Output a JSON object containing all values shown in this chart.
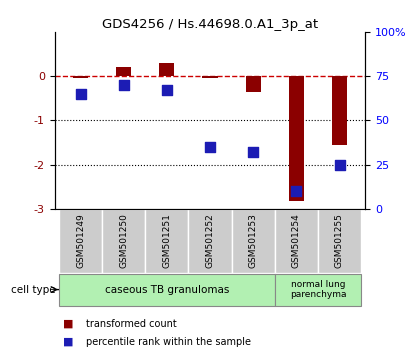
{
  "title": "GDS4256 / Hs.44698.0.A1_3p_at",
  "samples": [
    "GSM501249",
    "GSM501250",
    "GSM501251",
    "GSM501252",
    "GSM501253",
    "GSM501254",
    "GSM501255"
  ],
  "red_values": [
    -0.05,
    0.2,
    0.3,
    -0.05,
    -0.35,
    -2.82,
    -1.55
  ],
  "blue_values": [
    65,
    70,
    67,
    35,
    32,
    10,
    25
  ],
  "ylim_left": [
    -3,
    1
  ],
  "ylim_right": [
    0,
    100
  ],
  "yticks_left": [
    0,
    -1,
    -2,
    -3
  ],
  "yticks_right": [
    0,
    25,
    50,
    75,
    100
  ],
  "ytick_labels_right": [
    "0",
    "25",
    "50",
    "75",
    "100%"
  ],
  "red_color": "#8B0000",
  "blue_color": "#1C1CB4",
  "dashed_color": "#CC0000",
  "group1_label": "caseous TB granulomas",
  "group2_label": "normal lung\nparenchyma",
  "group1_color": "#B2F0B2",
  "group2_color": "#B2F0B2",
  "legend_red": "transformed count",
  "legend_blue": "percentile rank within the sample",
  "cell_type_label": "cell type",
  "bar_width": 0.35,
  "blue_marker_size": 55
}
